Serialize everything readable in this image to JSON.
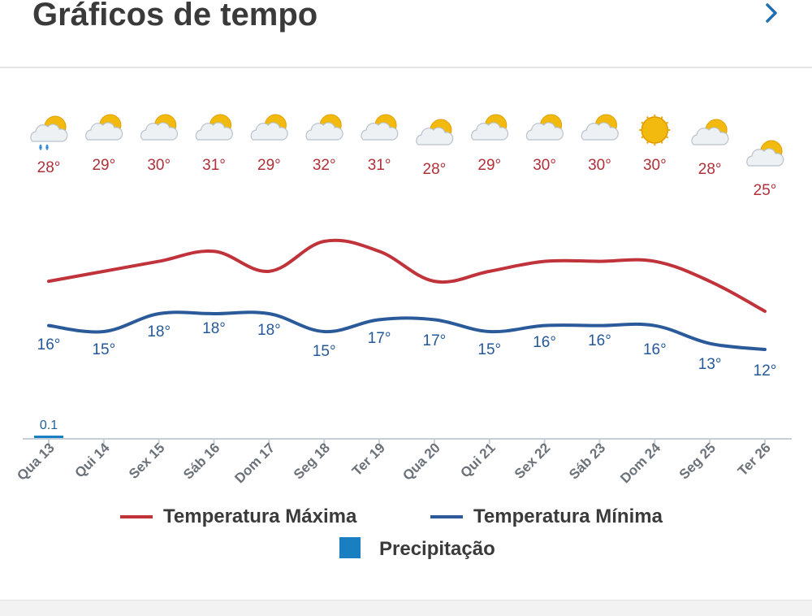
{
  "header": {
    "title": "Gráficos de tempo",
    "next_icon": "chevron-right-icon"
  },
  "chart_data": {
    "type": "line",
    "x": [
      "Qua 13",
      "Qui 14",
      "Sex 15",
      "Sáb 16",
      "Dom 17",
      "Seg 18",
      "Ter 19",
      "Qua 20",
      "Qui 21",
      "Sex 22",
      "Sáb 23",
      "Dom 24",
      "Seg 25",
      "Ter 26"
    ],
    "icons": [
      "partly-cloudy-rain-icon",
      "partly-cloudy-icon",
      "partly-cloudy-icon",
      "partly-cloudy-icon",
      "partly-cloudy-icon",
      "partly-cloudy-icon",
      "partly-cloudy-icon",
      "partly-cloudy-icon",
      "partly-cloudy-icon",
      "partly-cloudy-icon",
      "partly-cloudy-icon",
      "sunny-icon",
      "partly-cloudy-icon",
      "partly-cloudy-icon"
    ],
    "series": [
      {
        "name": "Temperatura Máxima",
        "color": "#c0333a",
        "values": [
          28,
          29,
          30,
          31,
          29,
          32,
          31,
          28,
          29,
          30,
          30,
          30,
          28,
          25
        ]
      },
      {
        "name": "Temperatura Mínima",
        "color": "#2a5a9a",
        "values": [
          16,
          15,
          18,
          18,
          18,
          15,
          17,
          17,
          15,
          16,
          16,
          16,
          13,
          12
        ]
      },
      {
        "name": "Precipitação",
        "type": "bar",
        "color": "#1a7fc1",
        "values": [
          0.1,
          0,
          0,
          0,
          0,
          0,
          0,
          0,
          0,
          0,
          0,
          0,
          0,
          0
        ],
        "labels": [
          "0.1",
          "",
          "",
          "",
          "",
          "",
          "",
          "",
          "",
          "",
          "",
          "",
          "",
          ""
        ]
      }
    ],
    "value_labels_max": [
      "28°",
      "29°",
      "30°",
      "31°",
      "29°",
      "32°",
      "31°",
      "28°",
      "29°",
      "30°",
      "30°",
      "30°",
      "28°",
      "25°"
    ],
    "value_labels_min": [
      "16°",
      "15°",
      "18°",
      "18°",
      "18°",
      "15°",
      "17°",
      "17°",
      "15°",
      "16°",
      "16°",
      "16°",
      "13°",
      "12°"
    ],
    "legend": [
      "Temperatura Máxima",
      "Temperatura Mínima",
      "Precipitação"
    ],
    "legend_position": "bottom",
    "grid": false
  }
}
